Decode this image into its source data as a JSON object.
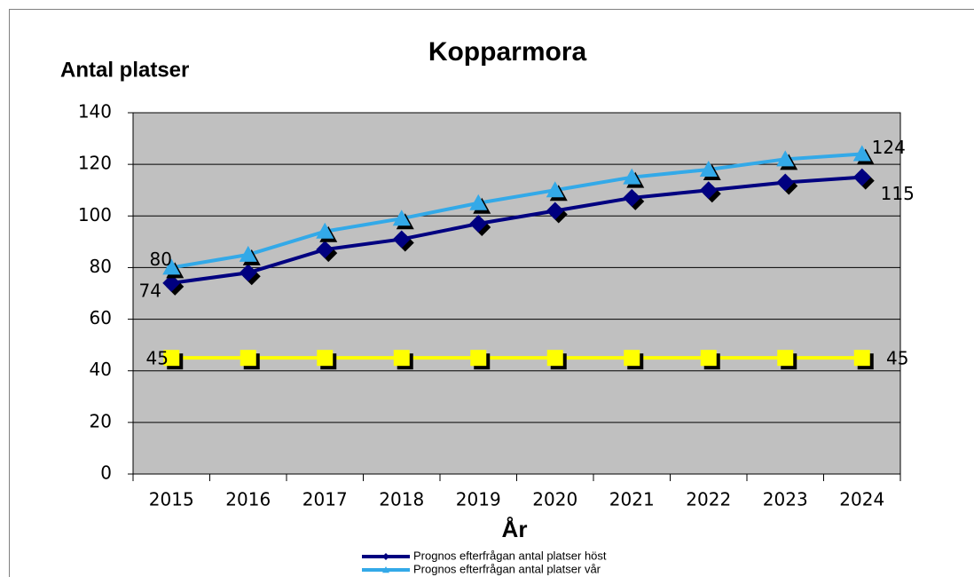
{
  "chart_data": {
    "type": "line",
    "title": "Kopparmora",
    "y_label": "Antal platser",
    "x_label": "År",
    "categories": [
      "2015",
      "2016",
      "2017",
      "2018",
      "2019",
      "2020",
      "2021",
      "2022",
      "2023",
      "2024"
    ],
    "series": [
      {
        "name": "Prognos efterfrågan antal platser höst",
        "color": "#000080",
        "marker": "diamond",
        "values": [
          74,
          78,
          87,
          91,
          97,
          102,
          107,
          110,
          113,
          115
        ]
      },
      {
        "name": "Prognos efterfrågan antal platser vår",
        "color": "#33a9e8",
        "marker": "triangle",
        "values": [
          80,
          85,
          94,
          99,
          105,
          110,
          115,
          118,
          122,
          124
        ]
      },
      {
        "color": "#ffff00",
        "marker": "square",
        "values": [
          45,
          45,
          45,
          45,
          45,
          45,
          45,
          45,
          45,
          45
        ]
      }
    ],
    "ylim": [
      0,
      140
    ],
    "yticks": [
      0,
      20,
      40,
      60,
      80,
      100,
      120,
      140
    ],
    "grid": true,
    "legend": "bottom"
  }
}
